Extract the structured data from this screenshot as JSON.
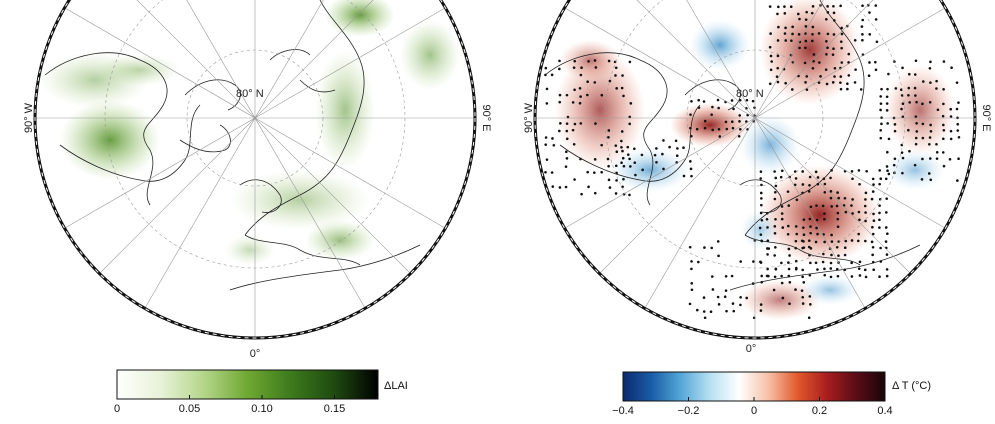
{
  "panels": [
    {
      "id": "lai",
      "labels": {
        "lat": "80° N",
        "west": "90° W",
        "east": "90° E",
        "south": "0°"
      },
      "colorbar": {
        "label": "ΔLAI",
        "ticks": [
          "0",
          "0.05",
          "0.10",
          "0.15"
        ],
        "tick_values": [
          0,
          0.05,
          0.1,
          0.15
        ],
        "range": [
          0,
          0.18
        ],
        "stops": [
          "#ffffff",
          "#e8f2d8",
          "#b4d68a",
          "#6fa832",
          "#3d7a1c",
          "#1e4a10",
          "#000000"
        ]
      },
      "field_color": "#6aa534"
    },
    {
      "id": "temp",
      "labels": {
        "lat": "80° N",
        "west": "90° W",
        "east": "90° E",
        "south": "0°"
      },
      "colorbar": {
        "label": "Δ T (°C)",
        "ticks": [
          "−0.4",
          "−0.2",
          "0",
          "0.2",
          "0.4"
        ],
        "tick_values": [
          -0.4,
          -0.2,
          0,
          0.2,
          0.4
        ],
        "range": [
          -0.4,
          0.4
        ],
        "stops": [
          "#0b2a6f",
          "#1a5ea8",
          "#56a8d8",
          "#b8e0f2",
          "#ffffff",
          "#f7c0a6",
          "#e2582c",
          "#a81e1e",
          "#5a0d18",
          "#1a0508"
        ]
      },
      "warm_color": "#c9432a",
      "cool_color": "#5fa9d3"
    }
  ]
}
